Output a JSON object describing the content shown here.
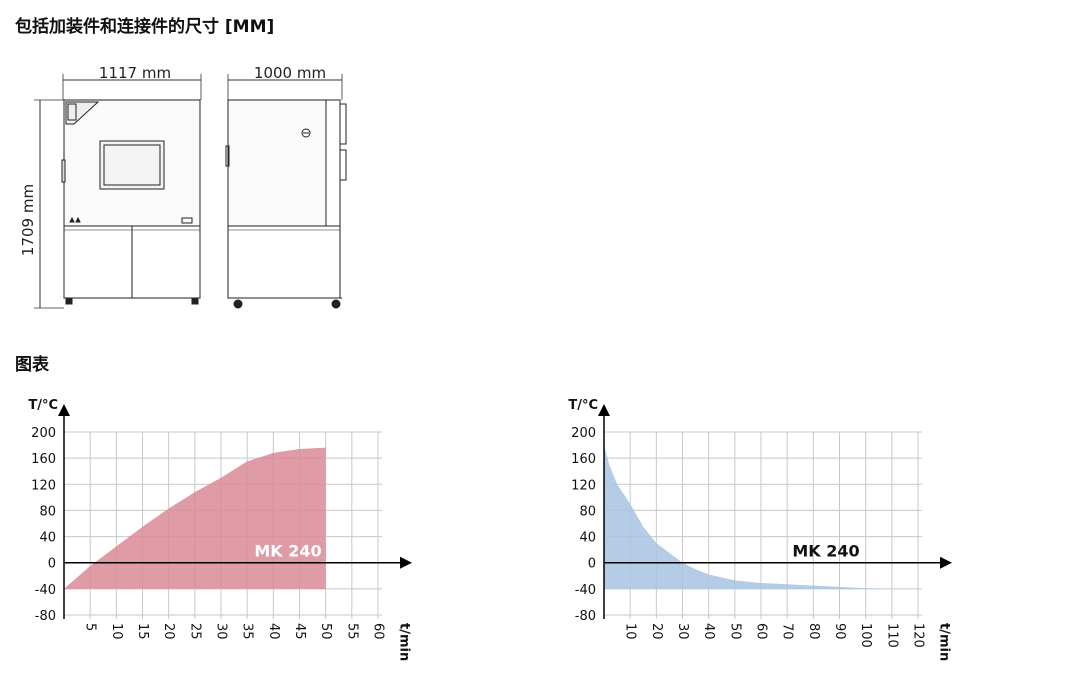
{
  "section_dimensions": {
    "title": "包括加装件和连接件的尺寸 [MM]",
    "width_label": "1117 mm",
    "depth_label": "1000 mm",
    "height_label": "1709 mm"
  },
  "section_charts": {
    "title": "图表"
  },
  "chart_data": [
    {
      "type": "area",
      "xlabel": "t/min",
      "ylabel": "T/°C",
      "series_label": "MK 240",
      "color": "#d98a96",
      "xlim": [
        0,
        60
      ],
      "ylim": [
        -80,
        200
      ],
      "x_ticks": [
        5,
        10,
        15,
        20,
        25,
        30,
        35,
        40,
        45,
        50,
        55,
        60
      ],
      "y_ticks": [
        200,
        160,
        120,
        80,
        40,
        0,
        -40,
        -80
      ],
      "x": [
        0,
        5,
        10,
        15,
        20,
        25,
        30,
        35,
        40,
        45,
        50
      ],
      "y": [
        -40,
        -5,
        25,
        55,
        83,
        108,
        130,
        155,
        168,
        174,
        176
      ],
      "grid": true
    },
    {
      "type": "area",
      "xlabel": "t/min",
      "ylabel": "T/°C",
      "series_label": "MK 240",
      "color": "#a7c3e2",
      "xlim": [
        0,
        120
      ],
      "ylim": [
        -80,
        200
      ],
      "x_ticks": [
        10,
        20,
        30,
        40,
        50,
        60,
        70,
        80,
        90,
        100,
        110,
        120
      ],
      "y_ticks": [
        200,
        160,
        120,
        80,
        40,
        0,
        -40,
        -80
      ],
      "x": [
        0,
        2,
        5,
        10,
        15,
        20,
        25,
        30,
        35,
        40,
        50,
        60,
        70,
        80,
        90,
        100,
        110
      ],
      "y": [
        180,
        150,
        120,
        90,
        55,
        30,
        15,
        0,
        -10,
        -18,
        -27,
        -31,
        -33,
        -35,
        -37,
        -39,
        -40
      ],
      "grid": true
    }
  ]
}
